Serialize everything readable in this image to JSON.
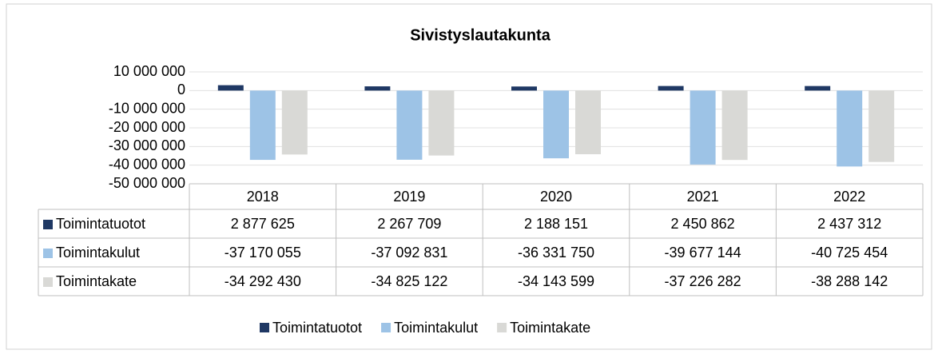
{
  "chart_data": {
    "type": "bar",
    "title": "Sivistyslautakunta",
    "categories": [
      "2018",
      "2019",
      "2020",
      "2021",
      "2022"
    ],
    "series": [
      {
        "name": "Toimintatuotot",
        "color": "#1f3864",
        "values": [
          2877625,
          2267709,
          2188151,
          2450862,
          2437312
        ],
        "value_labels": [
          "2 877 625",
          "2 267 709",
          "2 188 151",
          "2 450 862",
          "2 437 312"
        ]
      },
      {
        "name": "Toimintakulut",
        "color": "#9dc3e6",
        "values": [
          -37170055,
          -37092831,
          -36331750,
          -39677144,
          -40725454
        ],
        "value_labels": [
          "-37 170 055",
          "-37 092 831",
          "-36 331 750",
          "-39 677 144",
          "-40 725 454"
        ]
      },
      {
        "name": "Toimintakate",
        "color": "#d9d9d6",
        "values": [
          -34292430,
          -34825122,
          -34143599,
          -37226282,
          -38288142
        ],
        "value_labels": [
          "-34 292 430",
          "-34 825 122",
          "-34 143 599",
          "-37 226 282",
          "-38 288 142"
        ]
      }
    ],
    "ylim": [
      -50000000,
      10000000
    ],
    "yticks": [
      {
        "value": 10000000,
        "label": "10 000 000"
      },
      0,
      {
        "value": -10000000,
        "label": "-10 000 000"
      },
      {
        "value": -20000000,
        "label": "-20 000 000"
      },
      {
        "value": -30000000,
        "label": "-30 000 000"
      },
      {
        "value": -40000000,
        "label": "-40 000 000"
      },
      {
        "value": -50000000,
        "label": "-50 000 000"
      }
    ],
    "grid": true,
    "legend": "bottom"
  }
}
